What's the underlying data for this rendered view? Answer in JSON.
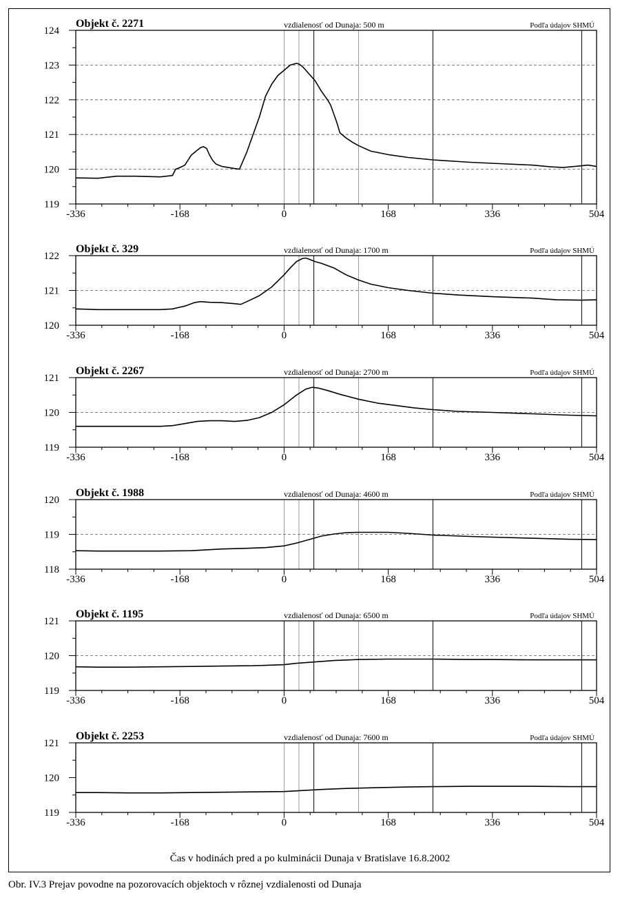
{
  "figure": {
    "x_axis_label": "Čas v hodinách pred a po kulminácii Dunaja v Bratislave 16.8.2002",
    "caption": "Obr. IV.3 Prejav povodne na pozorovacích objektoch v rôznej vzdialenosti od Dunaja"
  },
  "colors": {
    "line": "#000000",
    "grid": "#555555",
    "frame": "#000000",
    "background": "#ffffff"
  },
  "chart_data": [
    {
      "type": "line",
      "title": "Objekt č. 2271",
      "distance_label": "vzdialenosť od Dunaja:  500 m",
      "source_label": "Podľa údajov SHMÚ",
      "xlim": [
        -336,
        504
      ],
      "ylim": [
        119,
        124
      ],
      "x_ticks": [
        -336,
        -168,
        0,
        168,
        336,
        504
      ],
      "y_ticks": [
        119,
        120,
        121,
        122,
        123,
        124
      ],
      "dashed_y": [
        120,
        121,
        122,
        123
      ],
      "thin_vlines": [
        0,
        24,
        120
      ],
      "bold_vlines": [
        48,
        240,
        480
      ],
      "series": [
        {
          "x": [
            -336,
            -300,
            -270,
            -240,
            -200,
            -180,
            -175,
            -168,
            -160,
            -150,
            -140,
            -135,
            -130,
            -125,
            -120,
            -115,
            -110,
            -100,
            -90,
            -80,
            -72,
            -60,
            -50,
            -40,
            -30,
            -20,
            -10,
            0,
            10,
            20,
            24,
            30,
            40,
            50,
            60,
            70,
            75,
            80,
            85,
            90,
            100,
            110,
            120,
            140,
            168,
            200,
            240,
            300,
            336,
            400,
            430,
            450,
            480,
            490,
            504
          ],
          "y": [
            119.75,
            119.74,
            119.8,
            119.8,
            119.78,
            119.82,
            120.0,
            120.05,
            120.12,
            120.4,
            120.55,
            120.62,
            120.65,
            120.6,
            120.4,
            120.25,
            120.15,
            120.08,
            120.05,
            120.02,
            120.0,
            120.5,
            121.0,
            121.5,
            122.1,
            122.45,
            122.7,
            122.85,
            123.0,
            123.05,
            123.03,
            122.95,
            122.75,
            122.55,
            122.25,
            122.0,
            121.85,
            121.6,
            121.35,
            121.05,
            120.9,
            120.78,
            120.68,
            120.52,
            120.42,
            120.34,
            120.27,
            120.2,
            120.17,
            120.12,
            120.07,
            120.05,
            120.1,
            120.12,
            120.08
          ]
        }
      ]
    },
    {
      "type": "line",
      "title": "Objekt č. 329",
      "distance_label": "vzdialenosť od Dunaja:  1700 m",
      "source_label": "Podľa údajov SHMÚ",
      "xlim": [
        -336,
        504
      ],
      "ylim": [
        120,
        122
      ],
      "x_ticks": [
        -336,
        -168,
        0,
        168,
        336,
        504
      ],
      "y_ticks": [
        120,
        121,
        122
      ],
      "dashed_y": [
        121
      ],
      "thin_vlines": [
        0,
        24,
        120
      ],
      "bold_vlines": [
        48,
        240,
        480
      ],
      "series": [
        {
          "x": [
            -336,
            -300,
            -250,
            -200,
            -180,
            -160,
            -145,
            -135,
            -120,
            -100,
            -80,
            -70,
            -60,
            -40,
            -20,
            0,
            10,
            20,
            30,
            35,
            40,
            50,
            60,
            80,
            100,
            120,
            140,
            168,
            200,
            240,
            280,
            336,
            400,
            440,
            480,
            504
          ],
          "y": [
            120.47,
            120.45,
            120.45,
            120.45,
            120.47,
            120.55,
            120.65,
            120.68,
            120.66,
            120.65,
            120.62,
            120.6,
            120.68,
            120.85,
            121.1,
            121.45,
            121.65,
            121.83,
            121.92,
            121.93,
            121.9,
            121.83,
            121.78,
            121.65,
            121.45,
            121.3,
            121.18,
            121.08,
            121.0,
            120.92,
            120.87,
            120.82,
            120.78,
            120.73,
            120.72,
            120.73
          ]
        }
      ]
    },
    {
      "type": "line",
      "title": "Objekt č. 2267",
      "distance_label": "vzdialenosť od Dunaja:  2700 m",
      "source_label": "Podľa údajov SHMÚ",
      "xlim": [
        -336,
        504
      ],
      "ylim": [
        119,
        121
      ],
      "x_ticks": [
        -336,
        -168,
        0,
        168,
        336,
        504
      ],
      "y_ticks": [
        119,
        120,
        121
      ],
      "dashed_y": [
        120
      ],
      "thin_vlines": [
        0,
        24,
        120
      ],
      "bold_vlines": [
        48,
        240,
        480
      ],
      "series": [
        {
          "x": [
            -336,
            -300,
            -250,
            -200,
            -180,
            -160,
            -140,
            -120,
            -100,
            -80,
            -60,
            -40,
            -20,
            0,
            20,
            35,
            45,
            55,
            70,
            90,
            120,
            150,
            180,
            210,
            240,
            280,
            336,
            400,
            460,
            504
          ],
          "y": [
            119.6,
            119.6,
            119.6,
            119.6,
            119.62,
            119.68,
            119.74,
            119.76,
            119.76,
            119.74,
            119.77,
            119.85,
            120.0,
            120.22,
            120.5,
            120.67,
            120.72,
            120.7,
            120.63,
            120.52,
            120.38,
            120.27,
            120.2,
            120.13,
            120.08,
            120.03,
            120.0,
            119.96,
            119.92,
            119.9
          ]
        }
      ]
    },
    {
      "type": "line",
      "title": "Objekt č. 1988",
      "distance_label": "vzdialenosť od Dunaja:  4600 m",
      "source_label": "Podľa údajov SHMÚ",
      "xlim": [
        -336,
        504
      ],
      "ylim": [
        118,
        120
      ],
      "x_ticks": [
        -336,
        -168,
        0,
        168,
        336,
        504
      ],
      "y_ticks": [
        118,
        119,
        120
      ],
      "dashed_y": [
        119
      ],
      "thin_vlines": [
        0,
        24,
        120
      ],
      "bold_vlines": [
        48,
        240,
        480
      ],
      "series": [
        {
          "x": [
            -336,
            -300,
            -250,
            -200,
            -150,
            -120,
            -100,
            -60,
            -30,
            0,
            20,
            40,
            60,
            80,
            100,
            120,
            168,
            200,
            240,
            300,
            336,
            400,
            460,
            504
          ],
          "y": [
            118.53,
            118.52,
            118.52,
            118.52,
            118.53,
            118.56,
            118.58,
            118.6,
            118.62,
            118.67,
            118.75,
            118.85,
            118.95,
            119.01,
            119.05,
            119.06,
            119.06,
            119.03,
            118.98,
            118.94,
            118.92,
            118.89,
            118.86,
            118.85
          ]
        }
      ]
    },
    {
      "type": "line",
      "title": "Objekt č. 1195",
      "distance_label": "vzdialenosť od Dunaja:  6500 m",
      "source_label": "Podľa údajov SHMÚ",
      "xlim": [
        -336,
        504
      ],
      "ylim": [
        119,
        121
      ],
      "x_ticks": [
        -336,
        -168,
        0,
        168,
        336,
        504
      ],
      "y_ticks": [
        119,
        120,
        121
      ],
      "dashed_y": [
        120
      ],
      "thin_vlines": [
        24,
        120
      ],
      "bold_vlines": [
        0,
        48,
        240,
        480
      ],
      "series": [
        {
          "x": [
            -336,
            -300,
            -250,
            -200,
            -150,
            -100,
            -50,
            0,
            20,
            50,
            80,
            120,
            168,
            200,
            240,
            300,
            336,
            400,
            460,
            504
          ],
          "y": [
            119.68,
            119.67,
            119.67,
            119.68,
            119.69,
            119.7,
            119.71,
            119.74,
            119.78,
            119.82,
            119.86,
            119.89,
            119.9,
            119.9,
            119.9,
            119.89,
            119.89,
            119.88,
            119.88,
            119.88
          ]
        }
      ]
    },
    {
      "type": "line",
      "title": "Objekt č. 2253",
      "distance_label": "vzdialenosť od Dunaja:  7600 m",
      "source_label": "Podľa údajov SHMÚ",
      "xlim": [
        -336,
        504
      ],
      "ylim": [
        119,
        121
      ],
      "x_ticks": [
        -336,
        -168,
        0,
        168,
        336,
        504
      ],
      "y_ticks": [
        119,
        120,
        121
      ],
      "dashed_y": [],
      "thin_vlines": [
        0,
        24,
        120
      ],
      "bold_vlines": [
        48,
        240,
        480
      ],
      "series": [
        {
          "x": [
            -336,
            -300,
            -250,
            -200,
            -150,
            -100,
            -50,
            0,
            30,
            60,
            100,
            150,
            200,
            240,
            300,
            336,
            400,
            460,
            504
          ],
          "y": [
            119.57,
            119.57,
            119.56,
            119.56,
            119.57,
            119.58,
            119.59,
            119.6,
            119.63,
            119.66,
            119.69,
            119.71,
            119.73,
            119.74,
            119.75,
            119.75,
            119.75,
            119.74,
            119.74
          ]
        }
      ]
    }
  ]
}
